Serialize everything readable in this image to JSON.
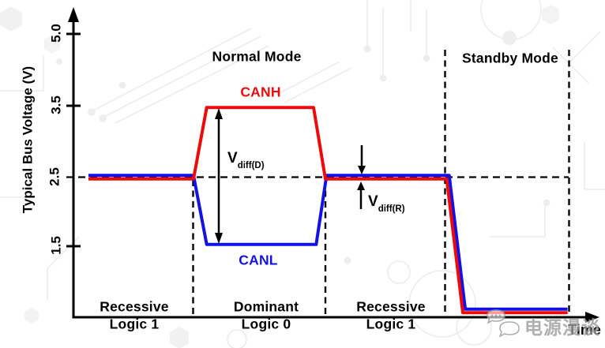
{
  "colors": {
    "canh": "#ee0a0a",
    "canl": "#1212e6",
    "axis": "#000000",
    "background": "#ffffff",
    "watermark": "#9a9a9a"
  },
  "y_axis": {
    "label": "Typical Bus Voltage (V)",
    "ticks": [
      "5.0",
      "3.5",
      "2.5",
      "1.5"
    ]
  },
  "x_axis": {
    "label": "Time"
  },
  "modes": {
    "normal": "Normal Mode",
    "standby": "Standby Mode"
  },
  "signals": {
    "canh": "CANH",
    "canl": "CANL"
  },
  "annotations": {
    "vdiff_d": {
      "main": "V",
      "sub": "diff(D)"
    },
    "vdiff_r": {
      "main": "V",
      "sub": "diff(R)"
    }
  },
  "regions": [
    {
      "state": "Recessive",
      "logic": "Logic 1"
    },
    {
      "state": "Dominant",
      "logic": "Logic 0"
    },
    {
      "state": "Recessive",
      "logic": "Logic 1"
    }
  ],
  "watermark": {
    "text": "电源漫谈",
    "icon": "chat-bubbles-icon"
  },
  "chart_data": {
    "type": "line",
    "title": "",
    "xlabel": "Time",
    "ylabel": "Typical Bus Voltage (V)",
    "yticks": [
      5.0,
      3.5,
      2.5,
      1.5
    ],
    "x_unit": "time (arbitrary units, 4 regions)",
    "region_spans": [
      {
        "label": "Recessive / Logic 1",
        "x": [
          0,
          1
        ],
        "mode": "Normal Mode"
      },
      {
        "label": "Dominant / Logic 0",
        "x": [
          1,
          2
        ],
        "mode": "Normal Mode"
      },
      {
        "label": "Recessive / Logic 1",
        "x": [
          2,
          3
        ],
        "mode": "Normal Mode"
      },
      {
        "label": "Standby",
        "x": [
          3,
          4
        ],
        "mode": "Standby Mode"
      }
    ],
    "series": [
      {
        "name": "CANH",
        "color": "#ee0a0a",
        "points": [
          [
            0,
            2.5
          ],
          [
            1,
            2.5
          ],
          [
            1.1,
            3.5
          ],
          [
            1.91,
            3.5
          ],
          [
            2,
            2.5
          ],
          [
            3.01,
            2.5
          ],
          [
            3.14,
            0.5
          ],
          [
            3.985,
            0.5
          ]
        ]
      },
      {
        "name": "CANL",
        "color": "#1212e6",
        "points": [
          [
            0,
            2.5
          ],
          [
            1,
            2.5
          ],
          [
            1.1,
            1.5
          ],
          [
            1.93,
            1.5
          ],
          [
            2.01,
            2.5
          ],
          [
            3.03,
            2.5
          ],
          [
            3.16,
            0.5
          ],
          [
            3.985,
            0.5
          ]
        ]
      }
    ],
    "annotations": [
      {
        "name": "Vdiff(D)",
        "value_v": 2.0,
        "between": "CANH 3.5 V and CANL 1.5 V in dominant state"
      },
      {
        "name": "Vdiff(R)",
        "value_v": 0.0,
        "at": "2.5 V recessive level"
      }
    ]
  }
}
